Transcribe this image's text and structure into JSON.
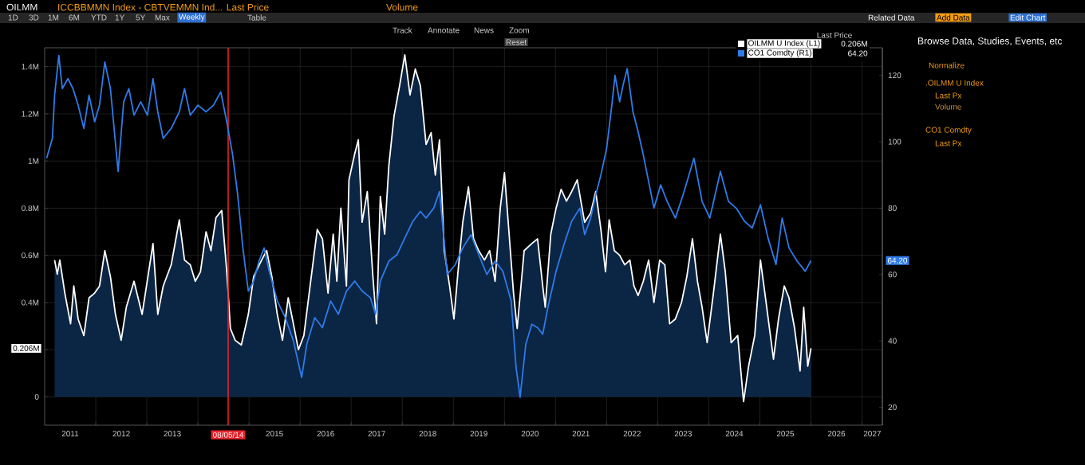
{
  "chart_data": {
    "type": "area",
    "xlim": [
      "2011-01-01",
      "2027-05-26"
    ],
    "xticks": [
      {
        "value": "2012-01-01",
        "label": null
      },
      {
        "value": "2013-01-01",
        "label": null
      },
      {
        "value": "2014-01-01",
        "label": null
      },
      {
        "value": "2015-01-01",
        "label": null
      },
      {
        "value": "2016-01-01",
        "label": null
      },
      {
        "value": "2017-01-01",
        "label": null
      },
      {
        "value": "2018-01-01",
        "label": null
      },
      {
        "value": "2019-01-01",
        "label": null
      },
      {
        "value": "2020-01-01",
        "label": null
      },
      {
        "value": "2021-01-01",
        "label": null
      },
      {
        "value": "2022-01-01",
        "label": null
      },
      {
        "value": "2023-01-01",
        "label": null
      },
      {
        "value": "2024-01-01",
        "label": null
      },
      {
        "value": "2025-01-01",
        "label": null
      },
      {
        "value": "2026-01-01",
        "label": null
      },
      {
        "value": "2027-01-01",
        "label": null
      },
      {
        "value": "2011-07-02",
        "label": "2011"
      },
      {
        "value": "2012-07-02",
        "label": "2012"
      },
      {
        "value": "2013-07-02",
        "label": "2013"
      },
      {
        "value": "2015-07-02",
        "label": "2015"
      },
      {
        "value": "2016-07-02",
        "label": "2016"
      },
      {
        "value": "2017-07-02",
        "label": "2017"
      },
      {
        "value": "2018-07-02",
        "label": "2018"
      },
      {
        "value": "2019-07-02",
        "label": "2019"
      },
      {
        "value": "2020-07-02",
        "label": "2020"
      },
      {
        "value": "2021-07-02",
        "label": "2021"
      },
      {
        "value": "2022-07-02",
        "label": "2022"
      },
      {
        "value": "2023-07-02",
        "label": "2023"
      },
      {
        "value": "2024-07-02",
        "label": "2024"
      },
      {
        "value": "2025-07-02",
        "label": "2025"
      },
      {
        "value": "2026-07-02",
        "label": "2026"
      },
      {
        "value": "2027-03-15",
        "label": "2027"
      }
    ],
    "ylim": [
      -0.12,
      1.48
    ],
    "yticks": [
      0,
      {
        "value": 0.2,
        "label": null
      },
      {
        "value": 0.4,
        "label": "0.4M"
      },
      {
        "value": 0.6,
        "label": "0.6M"
      },
      {
        "value": 0.8,
        "label": "0.8M"
      },
      {
        "value": 1,
        "label": "1M"
      },
      {
        "value": 1.2,
        "label": "1.2M"
      },
      {
        "value": 1.4,
        "label": "1.4M"
      }
    ],
    "y2lim": [
      14.6,
      128.3
    ],
    "y2ticks": [
      20,
      40,
      60,
      80,
      100,
      120
    ],
    "grid": true,
    "legend": "top right",
    "legend_title": "Last Price",
    "ref_lines": [
      {
        "axis": "x",
        "value": "2014-08-05",
        "label": "08/05/14",
        "color": "#e8232a"
      }
    ],
    "series": [
      {
        "name": "OILMM U Index  (L1)",
        "color": "#ffffff",
        "axis": "y",
        "x": [
          "2011-03-13",
          "2011-04-01",
          "2011-04-19",
          "2011-05-25",
          "2011-07-05",
          "2011-07-28",
          "2011-08-28",
          "2011-10-08",
          "2011-11-14",
          "2011-12-24",
          "2012-01-28",
          "2012-03-06",
          "2012-04-15",
          "2012-05-21",
          "2012-07-01",
          "2012-08-07",
          "2012-10-01",
          "2012-11-28",
          "2013-02-14",
          "2013-03-20",
          "2013-04-28",
          "2013-06-24",
          "2013-08-21",
          "2013-09-27",
          "2013-11-07",
          "2013-12-13",
          "2014-01-19",
          "2014-02-28",
          "2014-04-04",
          "2014-05-10",
          "2014-06-20",
          "2014-07-26",
          "2014-08-21",
          "2014-09-24",
          "2014-11-07",
          "2014-12-27",
          "2015-02-03",
          "2015-04-01",
          "2015-05-07",
          "2015-06-13",
          "2015-07-22",
          "2015-08-28",
          "2015-10-08",
          "2015-11-14",
          "2015-12-20",
          "2016-01-28",
          "2016-03-06",
          "2016-05-03",
          "2016-06-09",
          "2016-07-19",
          "2016-08-25",
          "2016-09-20",
          "2016-10-19",
          "2016-11-28",
          "2016-12-16",
          "2017-01-26",
          "2017-02-21",
          "2017-03-20",
          "2017-04-26",
          "2017-06-05",
          "2017-07-01",
          "2017-07-28",
          "2017-08-28",
          "2017-09-27",
          "2017-11-03",
          "2017-12-13",
          "2018-01-19",
          "2018-02-25",
          "2018-04-04",
          "2018-05-10",
          "2018-06-20",
          "2018-07-26",
          "2018-08-25",
          "2018-09-24",
          "2018-10-28",
          "2018-12-05",
          "2019-01-05",
          "2019-02-03",
          "2019-03-09",
          "2019-04-19",
          "2019-05-25",
          "2019-07-01",
          "2019-08-11",
          "2019-09-17",
          "2019-10-26",
          "2019-12-02",
          "2020-01-01",
          "2020-01-28",
          "2020-03-06",
          "2020-04-01",
          "2020-05-21",
          "2020-07-15",
          "2020-08-25",
          "2020-10-01",
          "2020-10-19",
          "2020-11-28",
          "2021-01-05",
          "2021-02-10",
          "2021-03-20",
          "2021-04-26",
          "2021-06-05",
          "2021-07-01",
          "2021-07-28",
          "2021-09-09",
          "2021-10-15",
          "2021-11-21",
          "2021-12-24",
          "2022-01-19",
          "2022-02-25",
          "2022-04-04",
          "2022-05-10",
          "2022-06-16",
          "2022-07-15",
          "2022-08-14",
          "2022-09-20",
          "2022-10-28",
          "2022-12-05",
          "2023-01-15",
          "2023-02-21",
          "2023-03-27",
          "2023-05-07",
          "2023-06-20",
          "2023-07-28",
          "2023-09-06",
          "2023-10-12",
          "2023-11-14",
          "2023-12-20",
          "2024-02-03",
          "2024-03-24",
          "2024-04-28",
          "2024-06-09",
          "2024-07-26",
          "2024-09-06",
          "2024-10-12",
          "2024-11-25",
          "2025-01-05",
          "2025-02-10",
          "2025-04-08",
          "2025-05-14",
          "2025-06-24",
          "2025-07-28",
          "2025-09-06",
          "2025-10-15",
          "2025-11-10",
          "2025-12-09",
          "2026-01-01"
        ],
        "values": [
          0.58,
          0.52,
          0.58,
          0.44,
          0.31,
          0.47,
          0.33,
          0.26,
          0.42,
          0.44,
          0.47,
          0.62,
          0.51,
          0.35,
          0.24,
          0.38,
          0.49,
          0.35,
          0.65,
          0.35,
          0.47,
          0.56,
          0.75,
          0.58,
          0.56,
          0.49,
          0.53,
          0.7,
          0.62,
          0.76,
          0.79,
          0.53,
          0.29,
          0.24,
          0.22,
          0.35,
          0.51,
          0.58,
          0.62,
          0.51,
          0.35,
          0.24,
          0.42,
          0.31,
          0.2,
          0.26,
          0.44,
          0.71,
          0.67,
          0.44,
          0.69,
          0.49,
          0.8,
          0.47,
          0.92,
          1.03,
          1.09,
          0.74,
          0.87,
          0.51,
          0.31,
          0.85,
          0.69,
          0.98,
          1.19,
          1.32,
          1.45,
          1.28,
          1.39,
          1.32,
          1.07,
          1.12,
          0.94,
          1.09,
          0.62,
          0.47,
          0.33,
          0.53,
          0.74,
          0.89,
          0.67,
          0.62,
          0.58,
          0.62,
          0.49,
          0.8,
          0.95,
          0.74,
          0.44,
          0.29,
          0.62,
          0.65,
          0.67,
          0.47,
          0.38,
          0.69,
          0.8,
          0.88,
          0.83,
          0.87,
          0.92,
          0.83,
          0.74,
          0.78,
          0.87,
          0.71,
          0.53,
          0.75,
          0.62,
          0.6,
          0.56,
          0.58,
          0.47,
          0.43,
          0.49,
          0.58,
          0.4,
          0.58,
          0.56,
          0.31,
          0.33,
          0.4,
          0.51,
          0.67,
          0.49,
          0.38,
          0.23,
          0.44,
          0.69,
          0.53,
          0.23,
          0.26,
          -0.02,
          0.13,
          0.26,
          0.58,
          0.42,
          0.16,
          0.33,
          0.47,
          0.42,
          0.29,
          0.11,
          0.38,
          0.13,
          0.206
        ]
      },
      {
        "name": "CO1 Comdty  (R1)",
        "type": "line",
        "color": "#2f7be8",
        "axis": "y2",
        "x": [
          "2011-01-15",
          "2011-02-25",
          "2011-03-13",
          "2011-04-12",
          "2011-05-07",
          "2011-06-16",
          "2011-07-22",
          "2011-08-28",
          "2011-10-08",
          "2011-11-14",
          "2011-12-24",
          "2012-01-28",
          "2012-03-06",
          "2012-04-15",
          "2012-06-09",
          "2012-07-19",
          "2012-08-25",
          "2012-10-01",
          "2012-11-18",
          "2013-01-05",
          "2013-02-14",
          "2013-03-20",
          "2013-04-28",
          "2013-06-24",
          "2013-08-21",
          "2013-09-27",
          "2013-11-07",
          "2014-01-01",
          "2014-02-28",
          "2014-04-22",
          "2014-06-13",
          "2014-07-26",
          "2014-09-06",
          "2014-10-12",
          "2014-11-18",
          "2014-12-27",
          "2015-02-03",
          "2015-03-13",
          "2015-04-19",
          "2015-05-25",
          "2015-07-22",
          "2015-09-17",
          "2015-11-14",
          "2016-01-12",
          "2016-02-18",
          "2016-04-15",
          "2016-06-09",
          "2016-08-07",
          "2016-10-01",
          "2016-11-28",
          "2017-01-26",
          "2017-03-20",
          "2017-05-18",
          "2017-06-24",
          "2017-07-28",
          "2017-09-27",
          "2017-11-25",
          "2018-01-19",
          "2018-03-17",
          "2018-05-10",
          "2018-06-20",
          "2018-08-14",
          "2018-09-24",
          "2018-11-18",
          "2019-01-15",
          "2019-03-09",
          "2019-05-07",
          "2019-07-01",
          "2019-08-28",
          "2019-10-26",
          "2019-12-20",
          "2020-02-18",
          "2020-03-24",
          "2020-04-22",
          "2020-06-02",
          "2020-07-15",
          "2020-08-25",
          "2020-10-01",
          "2020-11-07",
          "2021-01-05",
          "2021-03-02",
          "2021-04-26",
          "2021-06-24",
          "2021-07-28",
          "2021-09-09",
          "2021-10-15",
          "2021-11-21",
          "2022-01-01",
          "2022-02-07",
          "2022-03-02",
          "2022-04-04",
          "2022-04-28",
          "2022-05-28",
          "2022-07-08",
          "2022-08-14",
          "2022-09-20",
          "2022-10-28",
          "2022-12-05",
          "2023-01-22",
          "2023-03-09",
          "2023-05-07",
          "2023-07-01",
          "2023-09-17",
          "2023-11-14",
          "2024-01-08",
          "2024-03-24",
          "2024-05-21",
          "2024-07-15",
          "2024-09-13",
          "2024-11-07",
          "2025-01-05",
          "2025-02-28",
          "2025-04-26",
          "2025-06-09",
          "2025-07-28",
          "2025-09-24",
          "2025-11-21",
          "2026-01-01"
        ],
        "values": [
          95,
          101,
          114,
          126,
          116,
          119,
          116,
          111,
          104,
          114,
          106,
          111,
          124,
          116,
          91,
          112,
          116,
          108,
          112,
          108,
          119,
          109,
          101,
          104,
          109,
          116,
          108,
          111,
          109,
          111,
          115,
          106,
          96,
          84,
          68,
          55,
          58,
          64,
          68,
          61,
          52,
          47,
          40,
          29,
          39,
          47,
          44,
          52,
          48,
          55,
          58,
          55,
          53,
          48,
          58,
          64,
          66,
          71,
          76,
          79,
          77,
          80,
          85,
          60,
          63,
          68,
          72,
          66,
          60,
          64,
          61,
          52,
          32,
          23,
          39,
          45,
          44,
          42,
          50,
          61,
          69,
          76,
          80,
          72,
          77,
          84,
          90,
          98,
          111,
          120,
          112,
          117,
          122,
          109,
          103,
          96,
          88,
          80,
          87,
          82,
          77,
          84,
          95,
          82,
          77,
          91,
          82,
          80,
          76,
          74,
          81,
          71,
          63,
          77,
          68,
          64,
          61,
          64.2
        ]
      }
    ],
    "annotations": [
      "OILMM",
      "ICCBBMMN Index - CBTVEMMN Ind... Last Price",
      "Volume",
      "1D",
      "3D",
      "1M",
      "6M",
      "YTD",
      "1Y",
      "5Y",
      "Max",
      "Weekly",
      "Table",
      "Track",
      "Annotate",
      "News",
      "Zoom",
      "Reset",
      "Related Data",
      "Add Data",
      "Edit Chart",
      "Browse Data, Studies, Events, etc",
      "Normalize",
      ".OILMM U Index",
      "Last Px",
      "Volume",
      "CO1 Comdty",
      "Last Px",
      "0.206M",
      "64.20",
      "0.206M",
      "64.20"
    ]
  }
}
